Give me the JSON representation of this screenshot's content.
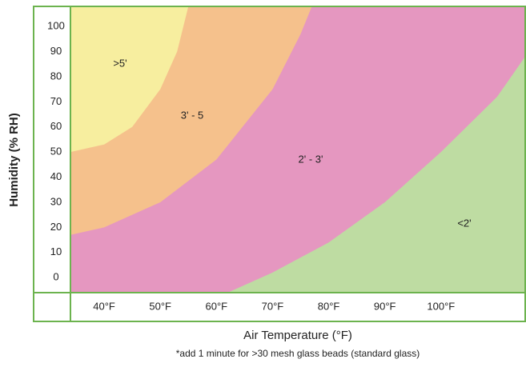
{
  "chart_data": {
    "type": "region",
    "x_label": "Air Temperature (°F)",
    "y_label": "Humidity (% RH)",
    "note": "*add 1 minute for >30 mesh glass beads (standard glass)",
    "xlim": [
      34,
      115
    ],
    "ylim": [
      -6,
      108
    ],
    "xticks": [
      {
        "value": 40,
        "label": "40°F"
      },
      {
        "value": 50,
        "label": "50°F"
      },
      {
        "value": 60,
        "label": "60°F"
      },
      {
        "value": 70,
        "label": "70°F"
      },
      {
        "value": 80,
        "label": "80°F"
      },
      {
        "value": 90,
        "label": "90°F"
      },
      {
        "value": 100,
        "label": "100°F"
      }
    ],
    "yticks": [
      0,
      10,
      20,
      30,
      40,
      50,
      60,
      70,
      80,
      90,
      100
    ],
    "grid": false,
    "series": [
      {
        "name": "<2'",
        "color": "#bedca2"
      },
      {
        "name": "2' - 3'",
        "color": "#e597c0",
        "x": [
          62,
          70,
          80,
          90,
          100,
          110,
          115
        ],
        "y": [
          -6,
          2,
          14,
          30,
          50,
          72,
          88
        ]
      },
      {
        "name": "3' - 5",
        "color": "#f5c18c",
        "x": [
          34,
          40,
          50,
          60,
          70,
          75,
          77
        ],
        "y": [
          17,
          20,
          30,
          47,
          75,
          97,
          108
        ]
      },
      {
        "name": ">5'",
        "color": "#f7ee9f",
        "x": [
          34,
          40,
          45,
          50,
          53,
          55
        ],
        "y": [
          50,
          53,
          60,
          75,
          90,
          108
        ]
      }
    ]
  }
}
